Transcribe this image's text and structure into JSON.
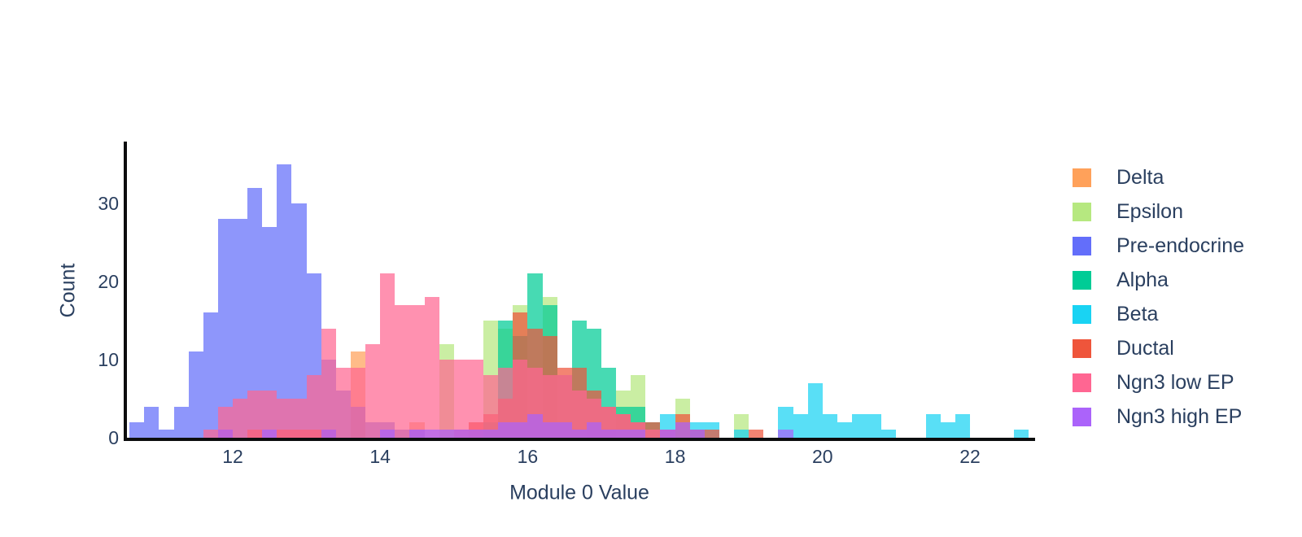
{
  "chart_data": {
    "type": "bar",
    "subtype": "overlaid-histogram",
    "title": "",
    "xlabel": "Module 0 Value",
    "ylabel": "Count",
    "x_ticks": [
      12,
      14,
      16,
      18,
      20,
      22
    ],
    "y_ticks": [
      0,
      10,
      20,
      30
    ],
    "xlim": [
      10.55,
      22.9
    ],
    "ylim": [
      0,
      38
    ],
    "grid": false,
    "legend_position": "right",
    "bin_width": 0.2,
    "bar_opacity": 0.72,
    "axis_color": "#0c0d0e",
    "text_color": "#2a3f5f",
    "series": [
      {
        "name": "Delta",
        "color": "#FFA15A",
        "bins": [
          [
            13.6,
            11
          ],
          [
            14.4,
            2
          ],
          [
            15.2,
            2
          ],
          [
            16.2,
            2
          ],
          [
            16.8,
            1
          ],
          [
            17.0,
            1
          ]
        ]
      },
      {
        "name": "Epsilon",
        "color": "#B6E880",
        "bins": [
          [
            14.8,
            12
          ],
          [
            15.4,
            15
          ],
          [
            15.6,
            14
          ],
          [
            15.8,
            17
          ],
          [
            16.2,
            18
          ],
          [
            17.2,
            6
          ],
          [
            17.4,
            8
          ],
          [
            18.0,
            5
          ],
          [
            18.8,
            3
          ]
        ]
      },
      {
        "name": "Pre-endocrine",
        "color": "#636EFA",
        "bins": [
          [
            10.6,
            2
          ],
          [
            10.8,
            4
          ],
          [
            11.0,
            1
          ],
          [
            11.2,
            4
          ],
          [
            11.4,
            11
          ],
          [
            11.6,
            16
          ],
          [
            11.8,
            28
          ],
          [
            12.0,
            28
          ],
          [
            12.2,
            32
          ],
          [
            12.4,
            27
          ],
          [
            12.6,
            35
          ],
          [
            12.8,
            30
          ],
          [
            13.0,
            21
          ],
          [
            13.2,
            10
          ],
          [
            13.4,
            6
          ],
          [
            13.6,
            4
          ],
          [
            13.8,
            2
          ],
          [
            14.0,
            2
          ],
          [
            14.2,
            1
          ],
          [
            14.4,
            1
          ]
        ]
      },
      {
        "name": "Alpha",
        "color": "#00CC96",
        "bins": [
          [
            15.4,
            2
          ],
          [
            15.6,
            15
          ],
          [
            15.8,
            13
          ],
          [
            16.0,
            21
          ],
          [
            16.2,
            17
          ],
          [
            16.4,
            8
          ],
          [
            16.6,
            15
          ],
          [
            16.8,
            14
          ],
          [
            17.0,
            9
          ],
          [
            17.2,
            4
          ],
          [
            17.4,
            4
          ],
          [
            17.6,
            2
          ],
          [
            17.8,
            1
          ]
        ]
      },
      {
        "name": "Beta",
        "color": "#19D3F3",
        "bins": [
          [
            17.8,
            3
          ],
          [
            18.2,
            2
          ],
          [
            18.4,
            2
          ],
          [
            18.8,
            1
          ],
          [
            19.4,
            4
          ],
          [
            19.6,
            3
          ],
          [
            19.8,
            7
          ],
          [
            20.0,
            3
          ],
          [
            20.2,
            2
          ],
          [
            20.4,
            3
          ],
          [
            20.6,
            3
          ],
          [
            20.8,
            1
          ],
          [
            21.4,
            3
          ],
          [
            21.6,
            2
          ],
          [
            21.8,
            3
          ],
          [
            22.6,
            1
          ]
        ]
      },
      {
        "name": "Ductal",
        "color": "#EF553B",
        "bins": [
          [
            11.8,
            1
          ],
          [
            12.2,
            1
          ],
          [
            12.6,
            1
          ],
          [
            12.8,
            1
          ],
          [
            13.0,
            1
          ],
          [
            13.2,
            1
          ],
          [
            15.0,
            1
          ],
          [
            15.2,
            2
          ],
          [
            15.4,
            3
          ],
          [
            15.6,
            5
          ],
          [
            15.8,
            16
          ],
          [
            16.0,
            14
          ],
          [
            16.2,
            13
          ],
          [
            16.4,
            9
          ],
          [
            16.6,
            9
          ],
          [
            16.8,
            6
          ],
          [
            17.0,
            4
          ],
          [
            17.2,
            3
          ],
          [
            17.4,
            2
          ],
          [
            17.6,
            2
          ],
          [
            17.8,
            1
          ],
          [
            18.0,
            3
          ],
          [
            18.2,
            1
          ],
          [
            18.4,
            1
          ],
          [
            19.0,
            1
          ]
        ]
      },
      {
        "name": "Ngn3 low EP",
        "color": "#FF6692",
        "bins": [
          [
            11.6,
            1
          ],
          [
            11.8,
            4
          ],
          [
            12.0,
            5
          ],
          [
            12.2,
            6
          ],
          [
            12.4,
            6
          ],
          [
            12.6,
            5
          ],
          [
            12.8,
            5
          ],
          [
            13.0,
            8
          ],
          [
            13.2,
            14
          ],
          [
            13.4,
            9
          ],
          [
            13.6,
            9
          ],
          [
            13.8,
            12
          ],
          [
            14.0,
            21
          ],
          [
            14.2,
            17
          ],
          [
            14.4,
            17
          ],
          [
            14.6,
            18
          ],
          [
            14.8,
            10
          ],
          [
            15.0,
            10
          ],
          [
            15.2,
            10
          ],
          [
            15.4,
            8
          ],
          [
            15.6,
            9
          ],
          [
            15.8,
            10
          ],
          [
            16.0,
            9
          ],
          [
            16.2,
            8
          ],
          [
            16.4,
            8
          ],
          [
            16.6,
            6
          ],
          [
            16.8,
            5
          ],
          [
            17.0,
            4
          ],
          [
            17.2,
            3
          ],
          [
            17.4,
            2
          ],
          [
            17.6,
            1
          ],
          [
            17.8,
            1
          ]
        ]
      },
      {
        "name": "Ngn3 high EP",
        "color": "#AB63FA",
        "bins": [
          [
            11.8,
            1
          ],
          [
            12.4,
            1
          ],
          [
            13.2,
            1
          ],
          [
            14.0,
            1
          ],
          [
            14.4,
            1
          ],
          [
            14.6,
            1
          ],
          [
            14.8,
            1
          ],
          [
            15.0,
            1
          ],
          [
            15.2,
            1
          ],
          [
            15.4,
            1
          ],
          [
            15.6,
            2
          ],
          [
            15.8,
            2
          ],
          [
            16.0,
            3
          ],
          [
            16.2,
            2
          ],
          [
            16.4,
            2
          ],
          [
            16.6,
            1
          ],
          [
            16.8,
            2
          ],
          [
            17.0,
            1
          ],
          [
            17.2,
            1
          ],
          [
            17.4,
            1
          ],
          [
            17.8,
            1
          ],
          [
            18.0,
            2
          ],
          [
            18.2,
            1
          ],
          [
            19.4,
            1
          ]
        ]
      }
    ]
  },
  "axes": {
    "x_title": "Module 0 Value",
    "y_title": "Count"
  },
  "legend": {
    "items": [
      {
        "label": "Delta",
        "color": "#FFA15A"
      },
      {
        "label": "Epsilon",
        "color": "#B6E880"
      },
      {
        "label": "Pre-endocrine",
        "color": "#636EFA"
      },
      {
        "label": "Alpha",
        "color": "#00CC96"
      },
      {
        "label": "Beta",
        "color": "#19D3F3"
      },
      {
        "label": "Ductal",
        "color": "#EF553B"
      },
      {
        "label": "Ngn3 low EP",
        "color": "#FF6692"
      },
      {
        "label": "Ngn3 high EP",
        "color": "#AB63FA"
      }
    ]
  }
}
